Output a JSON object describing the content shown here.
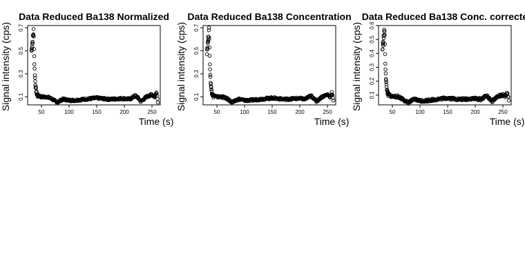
{
  "chart_data": [
    {
      "type": "scatter",
      "title": "Data Reduced Ba138 Normalized",
      "xlabel": "Time (s)",
      "ylabel": "Signal intensity (cps)",
      "xlim": [
        25,
        265
      ],
      "ylim": [
        0.03,
        0.72
      ],
      "xticks": [
        "50",
        "100",
        "150",
        "200",
        "250"
      ],
      "yticks": [
        "0.1",
        "0.3",
        "0.5",
        "0.7"
      ],
      "xtick_values": [
        50,
        100,
        150,
        200,
        250
      ],
      "ytick_values": [
        0.1,
        0.3,
        0.5,
        0.7
      ],
      "peak": {
        "x": 35,
        "y": 0.68,
        "base": 0.1
      },
      "series": [
        {
          "x": [
            32,
            34,
            36,
            38,
            40,
            45,
            50,
            60,
            70,
            78,
            85,
            90,
            100,
            110,
            120,
            130,
            140,
            150,
            160,
            170,
            180,
            190,
            200,
            210,
            220,
            225,
            230,
            240,
            250,
            255,
            258,
            260,
            261
          ],
          "y": [
            0.48,
            0.62,
            0.68,
            0.3,
            0.14,
            0.11,
            0.1,
            0.1,
            0.08,
            0.05,
            0.07,
            0.08,
            0.07,
            0.07,
            0.075,
            0.08,
            0.085,
            0.09,
            0.085,
            0.08,
            0.08,
            0.085,
            0.085,
            0.08,
            0.11,
            0.09,
            0.06,
            0.1,
            0.12,
            0.1,
            0.14,
            0.09,
            0.05
          ]
        }
      ]
    },
    {
      "type": "scatter",
      "title": "Data Reduced Ba138 Concentration",
      "xlabel": "Time (s)",
      "ylabel": "Signal intensity (cps)",
      "xlim": [
        25,
        265
      ],
      "ylim": [
        0.03,
        0.72
      ],
      "xticks": [
        "50",
        "100",
        "150",
        "200",
        "250"
      ],
      "yticks": [
        "0.1",
        "0.3",
        "0.5",
        "0.7"
      ],
      "xtick_values": [
        50,
        100,
        150,
        200,
        250
      ],
      "ytick_values": [
        0.1,
        0.3,
        0.5,
        0.7
      ],
      "peak": {
        "x": 35,
        "y": 0.68,
        "base": 0.1
      },
      "series": [
        {
          "x": [
            32,
            34,
            36,
            38,
            40,
            45,
            50,
            60,
            70,
            78,
            85,
            90,
            100,
            110,
            120,
            130,
            140,
            150,
            160,
            170,
            180,
            190,
            200,
            210,
            220,
            225,
            230,
            240,
            250,
            255,
            258,
            260,
            261
          ],
          "y": [
            0.48,
            0.62,
            0.68,
            0.3,
            0.14,
            0.11,
            0.1,
            0.1,
            0.08,
            0.05,
            0.07,
            0.08,
            0.07,
            0.07,
            0.075,
            0.08,
            0.085,
            0.09,
            0.085,
            0.08,
            0.08,
            0.085,
            0.085,
            0.08,
            0.11,
            0.09,
            0.06,
            0.1,
            0.12,
            0.1,
            0.14,
            0.09,
            0.05
          ]
        }
      ]
    },
    {
      "type": "scatter",
      "title": "Data Reduced Ba138 Conc. correcte",
      "xlabel": "Time (s)",
      "ylabel": "Signal intensity (cps)",
      "xlim": [
        25,
        265
      ],
      "ylim": [
        0.03,
        0.6
      ],
      "xticks": [
        "50",
        "100",
        "150",
        "200",
        "250"
      ],
      "yticks": [
        "0.1",
        "0.2",
        "0.3",
        "0.4",
        "0.5",
        "0.6"
      ],
      "xtick_values": [
        50,
        100,
        150,
        200,
        250
      ],
      "ytick_values": [
        0.1,
        0.2,
        0.3,
        0.4,
        0.5,
        0.6
      ],
      "peak": {
        "x": 35,
        "y": 0.58,
        "base": 0.09
      },
      "series": [
        {
          "x": [
            32,
            34,
            36,
            38,
            40,
            45,
            50,
            60,
            70,
            78,
            85,
            90,
            100,
            110,
            120,
            130,
            140,
            150,
            160,
            170,
            180,
            190,
            200,
            210,
            220,
            225,
            230,
            240,
            250,
            255,
            258,
            260,
            261
          ],
          "y": [
            0.4,
            0.52,
            0.58,
            0.25,
            0.12,
            0.1,
            0.09,
            0.09,
            0.07,
            0.045,
            0.06,
            0.07,
            0.06,
            0.06,
            0.065,
            0.07,
            0.075,
            0.08,
            0.075,
            0.07,
            0.07,
            0.075,
            0.075,
            0.07,
            0.095,
            0.08,
            0.055,
            0.09,
            0.1,
            0.09,
            0.12,
            0.08,
            0.045
          ]
        }
      ]
    }
  ]
}
